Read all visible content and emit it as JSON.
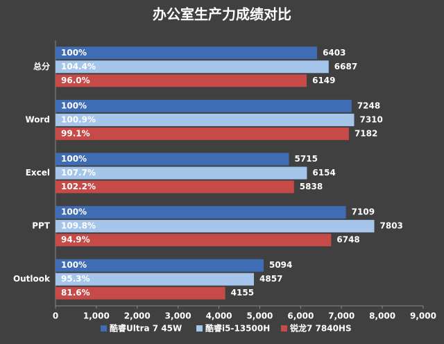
{
  "chart_data": {
    "type": "hbar",
    "title": "办公室生产力成绩对比",
    "categories": [
      "总分",
      "Word",
      "Excel",
      "PPT",
      "Outlook"
    ],
    "series": [
      {
        "name": "酷睿Ultra 7 45W",
        "color": "#3f6db3",
        "values": [
          6403,
          7248,
          5715,
          7109,
          5094
        ],
        "percent_labels": [
          "100%",
          "100%",
          "100%",
          "100%",
          "100%"
        ]
      },
      {
        "name": "酷睿i5-13500H",
        "color": "#a6c5eb",
        "values": [
          6687,
          7310,
          6154,
          7803,
          4857
        ],
        "percent_labels": [
          "104.4%",
          "100.9%",
          "107.7%",
          "109.8%",
          "95.3%"
        ]
      },
      {
        "name": "锐龙7 7840HS",
        "color": "#c54a48",
        "values": [
          6149,
          7182,
          5838,
          6748,
          4155
        ],
        "percent_labels": [
          "96.0%",
          "99.1%",
          "102.2%",
          "94.9%",
          "81.6%"
        ]
      }
    ],
    "xlim": [
      0,
      9000
    ],
    "xticks": [
      0,
      {
        "value": 1000,
        "label": "1,000"
      },
      {
        "value": 2000,
        "label": "2,000"
      },
      {
        "value": 3000,
        "label": "3,000"
      },
      {
        "value": 4000,
        "label": "4,000"
      },
      {
        "value": 5000,
        "label": "5,000"
      },
      {
        "value": 6000,
        "label": "6,000"
      },
      {
        "value": 7000,
        "label": "7,000"
      },
      {
        "value": 8000,
        "label": "8,000"
      },
      {
        "value": 9000,
        "label": "9,000"
      }
    ],
    "legend": "bottom"
  }
}
